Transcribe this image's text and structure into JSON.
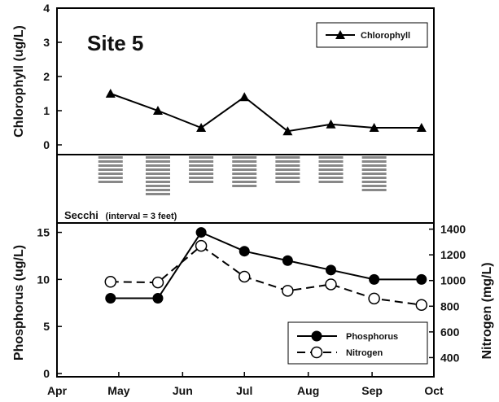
{
  "chart_data": [
    {
      "type": "line",
      "title": "Site 5",
      "ylabel": "Chlorophyll (ug/L)",
      "ylim": [
        0,
        4
      ],
      "yticks": [
        "0",
        "1",
        "2",
        "3",
        "4"
      ],
      "series": [
        {
          "name": "Chlorophyll",
          "marker": "triangle",
          "color": "#000000",
          "points": [
            {
              "x": "2009-04-27",
              "y": 1.5
            },
            {
              "x": "2009-05-20",
              "y": 1.0
            },
            {
              "x": "2009-06-10",
              "y": 0.5
            },
            {
              "x": "2009-07-01",
              "y": 1.4
            },
            {
              "x": "2009-07-22",
              "y": 0.4
            },
            {
              "x": "2009-08-12",
              "y": 0.6
            },
            {
              "x": "2009-09-02",
              "y": 0.5
            },
            {
              "x": "2009-09-25",
              "y": 0.5
            }
          ]
        }
      ],
      "legend": "top-right"
    },
    {
      "type": "bar",
      "title": "Secchi",
      "subtitle": "(interval = 3 feet)",
      "color": "#888888",
      "series": [
        {
          "points": [
            {
              "x": "2009-04-27",
              "y": 3.5
            },
            {
              "x": "2009-05-20",
              "y": 5.0
            },
            {
              "x": "2009-06-10",
              "y": 3.3
            },
            {
              "x": "2009-07-01",
              "y": 3.8
            },
            {
              "x": "2009-07-22",
              "y": 3.7
            },
            {
              "x": "2009-08-12",
              "y": 3.7
            },
            {
              "x": "2009-09-02",
              "y": 4.6
            }
          ]
        }
      ]
    },
    {
      "type": "line",
      "xlabel": "",
      "xticks": [
        "Apr",
        "May",
        "Jun",
        "Jul",
        "Aug",
        "Sep",
        "Oct"
      ],
      "xlim": [
        "2009-04-01",
        "2009-10-01"
      ],
      "ylabel": "Phosphorus (ug/L)",
      "ylim": [
        0,
        16
      ],
      "yticks": [
        "0",
        "5",
        "10",
        "15"
      ],
      "y2label": "Nitrogen (mg/L)",
      "y2lim": [
        276,
        1448
      ],
      "y2ticks": [
        "400",
        "600",
        "800",
        "1000",
        "1200",
        "1400"
      ],
      "legend": "bottom-right",
      "series": [
        {
          "name": "Phosphorus",
          "axis": "left",
          "marker": "filled-circle",
          "line": "solid",
          "color": "#000000",
          "points": [
            {
              "x": "2009-04-27",
              "y": 8
            },
            {
              "x": "2009-05-20",
              "y": 8
            },
            {
              "x": "2009-06-10",
              "y": 15
            },
            {
              "x": "2009-07-01",
              "y": 13
            },
            {
              "x": "2009-07-22",
              "y": 12
            },
            {
              "x": "2009-08-12",
              "y": 11
            },
            {
              "x": "2009-09-02",
              "y": 10
            },
            {
              "x": "2009-09-25",
              "y": 10
            }
          ]
        },
        {
          "name": "Nitrogen",
          "axis": "right",
          "marker": "open-circle",
          "line": "dashed",
          "color": "#000000",
          "points": [
            {
              "x": "2009-04-27",
              "y": 990
            },
            {
              "x": "2009-05-20",
              "y": 985
            },
            {
              "x": "2009-06-10",
              "y": 1270
            },
            {
              "x": "2009-07-01",
              "y": 1030
            },
            {
              "x": "2009-07-22",
              "y": 920
            },
            {
              "x": "2009-08-12",
              "y": 970
            },
            {
              "x": "2009-09-02",
              "y": 860
            },
            {
              "x": "2009-09-25",
              "y": 810
            }
          ]
        }
      ]
    }
  ]
}
